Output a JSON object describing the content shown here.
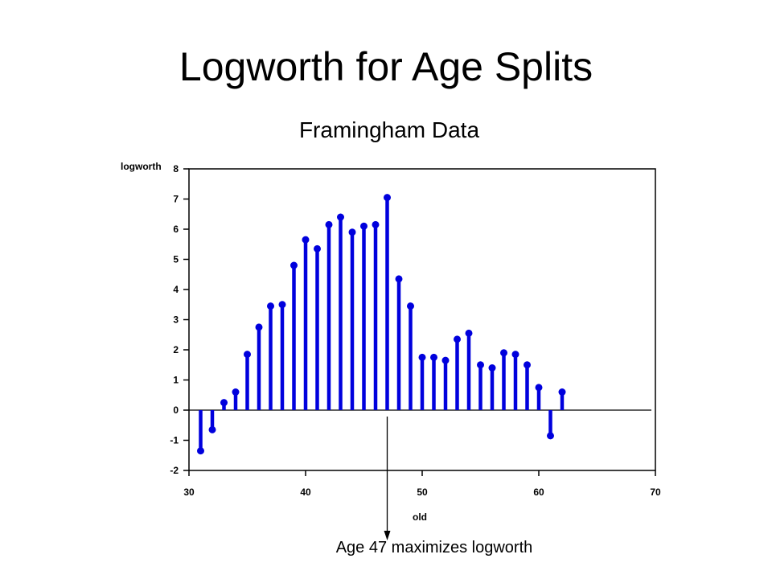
{
  "slide": {
    "title": "Logworth for Age Splits"
  },
  "annotation": {
    "text": "Age 47 maximizes logworth"
  },
  "colors": {
    "series": "#0000dd",
    "axis": "#000000",
    "background": "#ffffff"
  },
  "chart_data": {
    "type": "bar",
    "style": "needle",
    "title": "Framingham Data",
    "xlabel": "old",
    "ylabel": "logworth",
    "xlim": [
      30,
      70
    ],
    "ylim": [
      -2,
      8
    ],
    "x_ticks": [
      30,
      40,
      50,
      60,
      70
    ],
    "y_ticks": [
      -2,
      -1,
      0,
      1,
      2,
      3,
      4,
      5,
      6,
      7,
      8
    ],
    "x_tick_labels": [
      "30",
      "40",
      "50",
      "60",
      "70"
    ],
    "y_tick_labels": [
      "-2",
      "-1",
      "0",
      "1",
      "2",
      "3",
      "4",
      "5",
      "6",
      "7",
      "8"
    ],
    "grid": false,
    "reference_line": 0,
    "x": [
      31,
      32,
      33,
      34,
      35,
      36,
      37,
      38,
      39,
      40,
      41,
      42,
      43,
      44,
      45,
      46,
      47,
      48,
      49,
      50,
      51,
      52,
      53,
      54,
      55,
      56,
      57,
      58,
      59,
      60,
      61,
      62
    ],
    "values": [
      -1.35,
      -0.65,
      0.25,
      0.6,
      1.85,
      2.75,
      3.45,
      3.5,
      4.8,
      5.65,
      5.35,
      6.15,
      6.4,
      5.9,
      6.1,
      6.15,
      7.05,
      4.35,
      3.45,
      1.75,
      1.75,
      1.65,
      2.35,
      2.55,
      1.5,
      1.4,
      1.9,
      1.85,
      1.5,
      0.75,
      -0.85,
      0.6
    ],
    "highlight": {
      "x": 47
    }
  }
}
